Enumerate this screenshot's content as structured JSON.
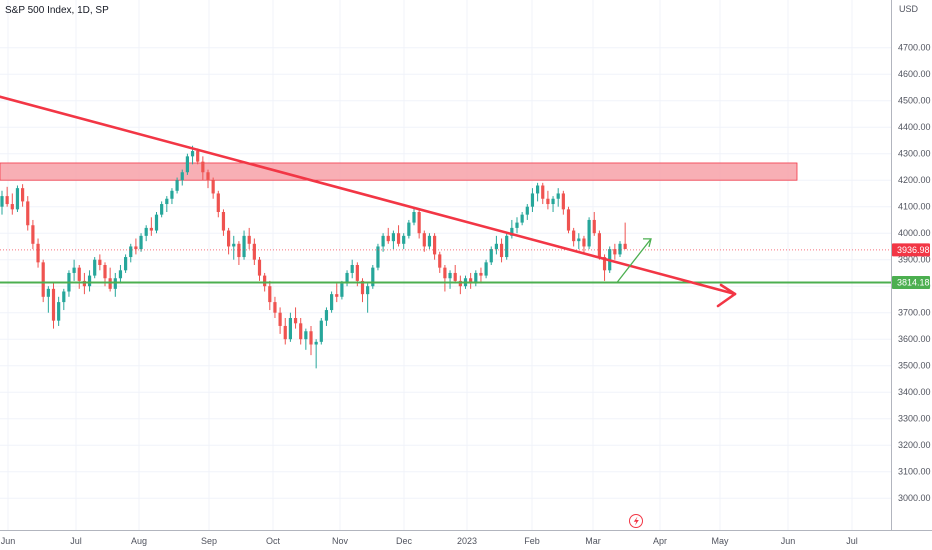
{
  "header": {
    "title": "S&P 500 Index, 1D, SP"
  },
  "currency": "USD",
  "colors": {
    "up": "#26a69a",
    "down": "#ef5350",
    "trendline": "#f23645",
    "zone_fill": "#f7a1a8",
    "zone_stroke": "#f23645",
    "support": "#4caf50",
    "grid": "#f0f3fa",
    "last_price": "#f23645",
    "projection": "#4caf50"
  },
  "chart_data": {
    "type": "candlestick",
    "title": "S&P 500 Index, 1D, SP",
    "x_ticks": [
      "Jun",
      "Jul",
      "Aug",
      "Sep",
      "Oct",
      "Nov",
      "Dec",
      "2023",
      "Feb",
      "Mar",
      "Apr",
      "May",
      "Jun",
      "Jul"
    ],
    "y_ticks": [
      3000,
      3100,
      3200,
      3300,
      3400,
      3500,
      3600,
      3700,
      3800,
      3900,
      4000,
      4100,
      4200,
      4300,
      4400,
      4500,
      4600,
      4700
    ],
    "y_tick_labels": [
      "3000.00",
      "3100.00",
      "3200.00",
      "3300.00",
      "3400.00",
      "3500.00",
      "3600.00",
      "3700.00",
      "3800.00",
      "3900.00",
      "4000.00",
      "4100.00",
      "4200.00",
      "4300.00",
      "4400.00",
      "4500.00",
      "4600.00",
      "4700.00"
    ],
    "ylim": [
      2880,
      4880
    ],
    "last_price": {
      "value": 3936.98,
      "label": "3936.98"
    },
    "support": {
      "value": 3814.18,
      "label": "3814.18"
    },
    "resistance_zone": {
      "low": 4200,
      "high": 4265,
      "start": "Jun",
      "end": "Jun 2023"
    },
    "trendline": {
      "start": {
        "date": "May 2022",
        "value": 4515
      },
      "end": {
        "date": "Mar 2023",
        "value": 3875
      }
    },
    "projection_arrow": {
      "from_value": 3814,
      "to_value": 3990
    },
    "series": [
      {
        "ohlc": [
          [
            4100,
            4160,
            4070,
            4140
          ],
          [
            4140,
            4175,
            4100,
            4110
          ],
          [
            4110,
            4150,
            4070,
            4090
          ],
          [
            4090,
            4180,
            4080,
            4170
          ],
          [
            4170,
            4185,
            4100,
            4120
          ],
          [
            4120,
            4140,
            4010,
            4030
          ],
          [
            4030,
            4050,
            3940,
            3960
          ],
          [
            3960,
            3980,
            3870,
            3890
          ],
          [
            3890,
            3900,
            3740,
            3760
          ],
          [
            3760,
            3800,
            3700,
            3790
          ],
          [
            3790,
            3810,
            3640,
            3670
          ],
          [
            3670,
            3760,
            3650,
            3740
          ],
          [
            3740,
            3790,
            3710,
            3780
          ],
          [
            3780,
            3860,
            3760,
            3850
          ],
          [
            3850,
            3900,
            3820,
            3870
          ],
          [
            3870,
            3880,
            3790,
            3820
          ],
          [
            3820,
            3850,
            3770,
            3800
          ],
          [
            3800,
            3860,
            3780,
            3840
          ],
          [
            3840,
            3910,
            3830,
            3900
          ],
          [
            3900,
            3920,
            3860,
            3880
          ],
          [
            3880,
            3890,
            3800,
            3830
          ],
          [
            3830,
            3870,
            3780,
            3790
          ],
          [
            3790,
            3850,
            3760,
            3830
          ],
          [
            3830,
            3880,
            3810,
            3860
          ],
          [
            3860,
            3920,
            3850,
            3910
          ],
          [
            3910,
            3960,
            3890,
            3950
          ],
          [
            3950,
            3980,
            3920,
            3940
          ],
          [
            3940,
            4000,
            3930,
            3990
          ],
          [
            3990,
            4030,
            3970,
            4020
          ],
          [
            4020,
            4060,
            3990,
            4010
          ],
          [
            4010,
            4080,
            4000,
            4070
          ],
          [
            4070,
            4120,
            4060,
            4110
          ],
          [
            4110,
            4140,
            4080,
            4130
          ],
          [
            4130,
            4170,
            4110,
            4160
          ],
          [
            4160,
            4210,
            4150,
            4200
          ],
          [
            4200,
            4240,
            4180,
            4230
          ],
          [
            4230,
            4300,
            4220,
            4290
          ],
          [
            4290,
            4330,
            4260,
            4310
          ],
          [
            4310,
            4320,
            4260,
            4270
          ],
          [
            4270,
            4290,
            4200,
            4230
          ],
          [
            4230,
            4240,
            4170,
            4200
          ],
          [
            4200,
            4210,
            4130,
            4150
          ],
          [
            4150,
            4160,
            4060,
            4080
          ],
          [
            4080,
            4090,
            3990,
            4010
          ],
          [
            4010,
            4020,
            3920,
            3950
          ],
          [
            3950,
            3990,
            3900,
            3960
          ],
          [
            3960,
            3970,
            3880,
            3910
          ],
          [
            3910,
            4010,
            3900,
            3990
          ],
          [
            3990,
            4020,
            3940,
            3960
          ],
          [
            3960,
            3980,
            3880,
            3900
          ],
          [
            3900,
            3910,
            3820,
            3840
          ],
          [
            3840,
            3850,
            3780,
            3800
          ],
          [
            3800,
            3820,
            3710,
            3740
          ],
          [
            3740,
            3760,
            3680,
            3700
          ],
          [
            3700,
            3720,
            3620,
            3650
          ],
          [
            3650,
            3680,
            3580,
            3600
          ],
          [
            3600,
            3700,
            3590,
            3680
          ],
          [
            3680,
            3720,
            3640,
            3660
          ],
          [
            3660,
            3680,
            3580,
            3600
          ],
          [
            3600,
            3640,
            3560,
            3630
          ],
          [
            3630,
            3650,
            3540,
            3580
          ],
          [
            3580,
            3600,
            3490,
            3590
          ],
          [
            3590,
            3680,
            3580,
            3670
          ],
          [
            3670,
            3720,
            3650,
            3710
          ],
          [
            3710,
            3780,
            3700,
            3770
          ],
          [
            3770,
            3810,
            3740,
            3760
          ],
          [
            3760,
            3820,
            3750,
            3810
          ],
          [
            3810,
            3860,
            3800,
            3850
          ],
          [
            3850,
            3900,
            3830,
            3880
          ],
          [
            3880,
            3890,
            3800,
            3820
          ],
          [
            3820,
            3830,
            3740,
            3770
          ],
          [
            3770,
            3810,
            3700,
            3800
          ],
          [
            3800,
            3880,
            3790,
            3870
          ],
          [
            3870,
            3960,
            3860,
            3950
          ],
          [
            3950,
            4000,
            3930,
            3990
          ],
          [
            3990,
            4020,
            3960,
            3970
          ],
          [
            3970,
            4010,
            3940,
            4000
          ],
          [
            4000,
            4030,
            3950,
            3960
          ],
          [
            3960,
            4000,
            3940,
            3990
          ],
          [
            3990,
            4050,
            3980,
            4040
          ],
          [
            4040,
            4100,
            4030,
            4080
          ],
          [
            4080,
            4090,
            3980,
            4000
          ],
          [
            4000,
            4010,
            3930,
            3950
          ],
          [
            3950,
            4000,
            3940,
            3990
          ],
          [
            3990,
            4000,
            3900,
            3920
          ],
          [
            3920,
            3930,
            3850,
            3870
          ],
          [
            3870,
            3880,
            3780,
            3830
          ],
          [
            3830,
            3860,
            3790,
            3850
          ],
          [
            3850,
            3880,
            3810,
            3820
          ],
          [
            3820,
            3840,
            3770,
            3800
          ],
          [
            3800,
            3840,
            3790,
            3830
          ],
          [
            3830,
            3850,
            3790,
            3810
          ],
          [
            3810,
            3860,
            3800,
            3850
          ],
          [
            3850,
            3870,
            3810,
            3840
          ],
          [
            3840,
            3900,
            3830,
            3890
          ],
          [
            3890,
            3950,
            3880,
            3940
          ],
          [
            3940,
            3990,
            3920,
            3960
          ],
          [
            3960,
            3980,
            3890,
            3910
          ],
          [
            3910,
            4000,
            3900,
            3990
          ],
          [
            3990,
            4050,
            3980,
            4020
          ],
          [
            4020,
            4060,
            4000,
            4040
          ],
          [
            4040,
            4080,
            4030,
            4070
          ],
          [
            4070,
            4110,
            4050,
            4100
          ],
          [
            4100,
            4170,
            4080,
            4150
          ],
          [
            4150,
            4190,
            4120,
            4180
          ],
          [
            4180,
            4190,
            4110,
            4130
          ],
          [
            4130,
            4160,
            4090,
            4110
          ],
          [
            4110,
            4140,
            4080,
            4130
          ],
          [
            4130,
            4170,
            4100,
            4150
          ],
          [
            4150,
            4160,
            4070,
            4090
          ],
          [
            4090,
            4100,
            4000,
            4010
          ],
          [
            4010,
            4020,
            3950,
            3970
          ],
          [
            3970,
            4000,
            3940,
            3980
          ],
          [
            3980,
            3990,
            3920,
            3950
          ],
          [
            3950,
            4060,
            3940,
            4050
          ],
          [
            4050,
            4080,
            3990,
            4000
          ],
          [
            4000,
            4010,
            3900,
            3910
          ],
          [
            3910,
            3920,
            3820,
            3860
          ],
          [
            3860,
            3950,
            3850,
            3940
          ],
          [
            3940,
            3960,
            3900,
            3920
          ],
          [
            3920,
            3970,
            3910,
            3960
          ],
          [
            3960,
            4040,
            3950,
            3940
          ]
        ]
      }
    ]
  }
}
